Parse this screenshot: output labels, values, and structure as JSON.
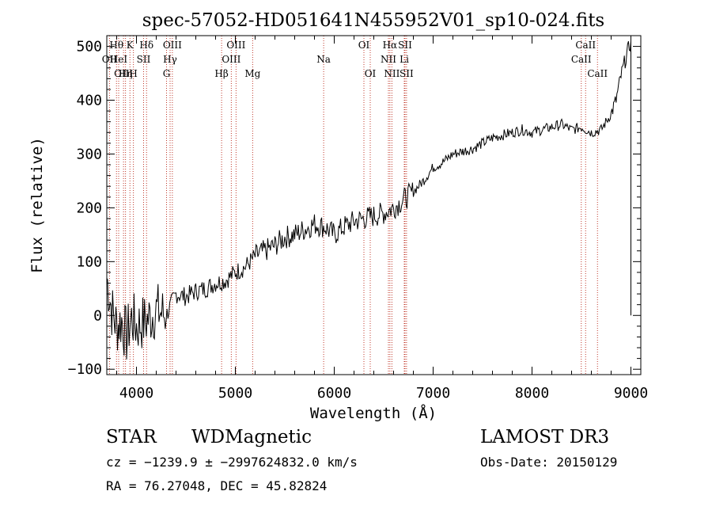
{
  "chart_data": {
    "type": "line",
    "title": "spec-57052-HD051641N455952V01_sp10-024.fits",
    "xlabel": "Wavelength (Å)",
    "ylabel": "Flux (relative)",
    "xlim": [
      3700,
      9100
    ],
    "ylim": [
      -110,
      520
    ],
    "xticks": [
      4000,
      5000,
      6000,
      7000,
      8000,
      9000
    ],
    "xtick_labels": [
      "4000",
      "5000",
      "6000",
      "7000",
      "8000",
      "9000"
    ],
    "yticks": [
      -100,
      0,
      100,
      200,
      300,
      400,
      500
    ],
    "ytick_labels": [
      "−100",
      "0",
      "100",
      "200",
      "300",
      "400",
      "500"
    ],
    "series": [
      {
        "name": "spectrum",
        "x": [
          3700,
          3750,
          3800,
          3850,
          3900,
          3950,
          4000,
          4100,
          4200,
          4300,
          4400,
          4500,
          4600,
          4700,
          4800,
          4900,
          5000,
          5100,
          5200,
          5300,
          5400,
          5500,
          5600,
          5700,
          5800,
          5900,
          6000,
          6100,
          6200,
          6300,
          6400,
          6500,
          6600,
          6700,
          6800,
          6900,
          7000,
          7100,
          7200,
          7300,
          7400,
          7500,
          7600,
          7700,
          7800,
          7900,
          8000,
          8100,
          8200,
          8300,
          8400,
          8500,
          8600,
          8700,
          8800,
          8850,
          8900,
          8950,
          9000
        ],
        "y": [
          70,
          10,
          -20,
          -10,
          -40,
          -5,
          -20,
          -10,
          10,
          0,
          40,
          35,
          45,
          50,
          60,
          65,
          80,
          90,
          110,
          120,
          130,
          145,
          150,
          160,
          170,
          165,
          150,
          165,
          175,
          180,
          185,
          190,
          200,
          215,
          230,
          250,
          275,
          285,
          300,
          305,
          310,
          320,
          330,
          335,
          340,
          345,
          340,
          345,
          350,
          355,
          345,
          350,
          340,
          345,
          375,
          400,
          445,
          480,
          510
        ]
      }
    ],
    "lines": [
      {
        "label": "OII",
        "x": 3727,
        "row": 1
      },
      {
        "label": "Hθ",
        "x": 3798,
        "row": 0
      },
      {
        "label": "HeI",
        "x": 3820,
        "row": 1
      },
      {
        "label": "OIII",
        "x": 3869,
        "row": 2
      },
      {
        "label": "Hη",
        "x": 3889,
        "row": 2
      },
      {
        "label": "K",
        "x": 3934,
        "row": 0
      },
      {
        "label": "H",
        "x": 3969,
        "row": 2
      },
      {
        "label": "SII",
        "x": 4072,
        "row": 1
      },
      {
        "label": "Hδ",
        "x": 4102,
        "row": 0
      },
      {
        "label": "G",
        "x": 4304,
        "row": 2
      },
      {
        "label": "Hγ",
        "x": 4340,
        "row": 1
      },
      {
        "label": "OIII",
        "x": 4363,
        "row": 0
      },
      {
        "label": "Hβ",
        "x": 4861,
        "row": 2
      },
      {
        "label": "OIII",
        "x": 4959,
        "row": 1
      },
      {
        "label": "OIII",
        "x": 5007,
        "row": 0
      },
      {
        "label": "Mg",
        "x": 5175,
        "row": 2
      },
      {
        "label": "Na",
        "x": 5893,
        "row": 1
      },
      {
        "label": "OI",
        "x": 6300,
        "row": 0
      },
      {
        "label": "OI",
        "x": 6364,
        "row": 2
      },
      {
        "label": "NII",
        "x": 6548,
        "row": 1
      },
      {
        "label": "Hα",
        "x": 6563,
        "row": 0
      },
      {
        "label": "NII",
        "x": 6583,
        "row": 2
      },
      {
        "label": "Li",
        "x": 6708,
        "row": 1
      },
      {
        "label": "SII",
        "x": 6716,
        "row": 0
      },
      {
        "label": "SII",
        "x": 6731,
        "row": 2
      },
      {
        "label": "CaII",
        "x": 8498,
        "row": 1
      },
      {
        "label": "CaII",
        "x": 8542,
        "row": 0
      },
      {
        "label": "CaII",
        "x": 8662,
        "row": 2
      }
    ]
  },
  "info": {
    "class": "STAR",
    "subclass": "WDMagnetic",
    "survey": "LAMOST DR3",
    "cz": "cz = −1239.9 ± −2997624832.0 km/s",
    "obs_date": "Obs-Date: 20150129",
    "coords": "RA =  76.27048, DEC =  45.82824"
  },
  "colors": {
    "line_marker": "#c0392b",
    "spectrum": "#000000",
    "axes": "#000000"
  }
}
